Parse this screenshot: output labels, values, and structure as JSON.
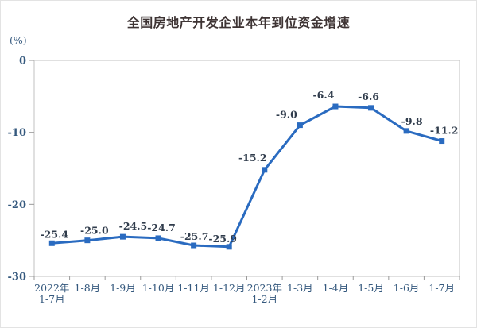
{
  "chart": {
    "title": "全国房地产开发企业本年到位资金增速",
    "unit_label": "(%)"
  },
  "chart_data": {
    "type": "line",
    "title": "全国房地产开发企业本年到位资金增速",
    "ylabel": "(%)",
    "xlabel": "",
    "categories": [
      "2022年 1-7月",
      "1-8月",
      "1-9月",
      "1-10月",
      "1-11月",
      "1-12月",
      "2023年 1-2月",
      "1-3月",
      "1-4月",
      "1-5月",
      "1-6月",
      "1-7月"
    ],
    "category_lines": [
      [
        "2022年",
        "1-7月"
      ],
      [
        "1-8月"
      ],
      [
        "1-9月"
      ],
      [
        "1-10月"
      ],
      [
        "1-11月"
      ],
      [
        "1-12月"
      ],
      [
        "2023年",
        "1-2月"
      ],
      [
        "1-3月"
      ],
      [
        "1-4月"
      ],
      [
        "1-5月"
      ],
      [
        "1-6月"
      ],
      [
        "1-7月"
      ]
    ],
    "values": [
      -25.4,
      -25.0,
      -24.5,
      -24.7,
      -25.7,
      -25.9,
      -15.2,
      -9.0,
      -6.4,
      -6.6,
      -9.8,
      -11.2
    ],
    "point_labels": [
      "-25.4",
      "-25.0",
      "-24.5",
      "-24.7",
      "-25.7",
      "-25.9",
      "-15.2",
      "-9.0",
      "-6.4",
      "-6.6",
      "-9.8",
      "-11.2"
    ],
    "ylim": [
      -30,
      0
    ],
    "yticks": [
      0,
      -10,
      -20,
      -30
    ],
    "ytick_labels": [
      "0",
      "-10",
      "-20",
      "-30"
    ],
    "grid": false,
    "legend": "none",
    "marker": "square",
    "colors": {
      "line": "#2a6bc0",
      "marker": "#2a6bc0",
      "point_label": "#303c4c",
      "axis_label": "#35597e",
      "title": "#3e3434",
      "plot_border": "#cbcbcb",
      "tick": "#9a9a9a"
    }
  }
}
